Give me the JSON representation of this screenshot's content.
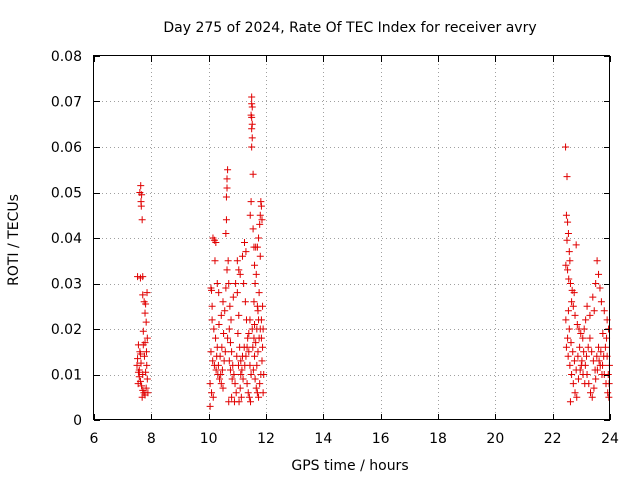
{
  "chart_data": {
    "type": "scatter",
    "title": "Day 275 of 2024, Rate Of TEC Index for receiver avry",
    "xlabel": "GPS time / hours",
    "ylabel": "ROTI / TECUs",
    "xlim": [
      6,
      24
    ],
    "ylim": [
      0,
      0.08
    ],
    "xticks": [
      6,
      8,
      10,
      12,
      14,
      16,
      18,
      20,
      22,
      24
    ],
    "xtick_labels": [
      "6",
      "8",
      "10",
      "12",
      "14",
      "16",
      "18",
      "20",
      "22",
      "24"
    ],
    "yticks": [
      0,
      0.01,
      0.02,
      0.03,
      0.04,
      0.05,
      0.06,
      0.07,
      0.08
    ],
    "ytick_labels": [
      "0",
      "0.01",
      "0.02",
      "0.03",
      "0.04",
      "0.05",
      "0.06",
      "0.07",
      "0.08"
    ],
    "grid": true,
    "marker": "plus",
    "color": "#e00000",
    "series": [
      {
        "name": "ROTI",
        "points": [
          [
            7.52,
            0.0315
          ],
          [
            7.62,
            0.0312
          ],
          [
            7.7,
            0.0315
          ],
          [
            7.6,
            0.05
          ],
          [
            7.63,
            0.0515
          ],
          [
            7.66,
            0.0495
          ],
          [
            7.64,
            0.048
          ],
          [
            7.65,
            0.047
          ],
          [
            7.68,
            0.044
          ],
          [
            7.7,
            0.0275
          ],
          [
            7.75,
            0.026
          ],
          [
            7.8,
            0.0255
          ],
          [
            7.85,
            0.028
          ],
          [
            7.78,
            0.0235
          ],
          [
            7.82,
            0.0215
          ],
          [
            7.55,
            0.0165
          ],
          [
            7.6,
            0.015
          ],
          [
            7.72,
            0.0165
          ],
          [
            7.86,
            0.018
          ],
          [
            7.5,
            0.012
          ],
          [
            7.55,
            0.0105
          ],
          [
            7.58,
            0.0095
          ],
          [
            7.62,
            0.0085
          ],
          [
            7.66,
            0.0075
          ],
          [
            7.7,
            0.0065
          ],
          [
            7.74,
            0.006
          ],
          [
            7.78,
            0.0055
          ],
          [
            7.82,
            0.007
          ],
          [
            7.86,
            0.009
          ],
          [
            7.52,
            0.0135
          ],
          [
            7.64,
            0.0125
          ],
          [
            7.76,
            0.014
          ],
          [
            7.84,
            0.012
          ],
          [
            7.58,
            0.011
          ],
          [
            7.7,
            0.01
          ],
          [
            7.8,
            0.0105
          ],
          [
            7.68,
            0.005
          ],
          [
            7.88,
            0.006
          ],
          [
            7.54,
            0.008
          ],
          [
            7.62,
            0.0145
          ],
          [
            7.72,
            0.0195
          ],
          [
            7.78,
            0.017
          ],
          [
            7.83,
            0.015
          ],
          [
            10.05,
            0.003
          ],
          [
            10.05,
            0.008
          ],
          [
            10.08,
            0.029
          ],
          [
            10.1,
            0.0285
          ],
          [
            10.12,
            0.025
          ],
          [
            10.15,
            0.04
          ],
          [
            10.2,
            0.0395
          ],
          [
            10.25,
            0.039
          ],
          [
            10.22,
            0.035
          ],
          [
            10.3,
            0.03
          ],
          [
            10.35,
            0.028
          ],
          [
            10.12,
            0.022
          ],
          [
            10.18,
            0.02
          ],
          [
            10.24,
            0.018
          ],
          [
            10.3,
            0.016
          ],
          [
            10.08,
            0.015
          ],
          [
            10.14,
            0.013
          ],
          [
            10.2,
            0.012
          ],
          [
            10.26,
            0.011
          ],
          [
            10.32,
            0.01
          ],
          [
            10.38,
            0.009
          ],
          [
            10.44,
            0.008
          ],
          [
            10.5,
            0.007
          ],
          [
            10.1,
            0.006
          ],
          [
            10.16,
            0.005
          ],
          [
            10.4,
            0.014
          ],
          [
            10.46,
            0.016
          ],
          [
            10.52,
            0.019
          ],
          [
            10.56,
            0.024
          ],
          [
            10.6,
            0.029
          ],
          [
            10.64,
            0.033
          ],
          [
            10.68,
            0.035
          ],
          [
            10.6,
            0.041
          ],
          [
            10.62,
            0.044
          ],
          [
            10.62,
            0.049
          ],
          [
            10.64,
            0.051
          ],
          [
            10.64,
            0.053
          ],
          [
            10.66,
            0.055
          ],
          [
            10.7,
            0.03
          ],
          [
            10.74,
            0.025
          ],
          [
            10.78,
            0.022
          ],
          [
            10.72,
            0.02
          ],
          [
            10.76,
            0.017
          ],
          [
            10.8,
            0.015
          ],
          [
            10.84,
            0.012
          ],
          [
            10.88,
            0.01
          ],
          [
            10.92,
            0.008
          ],
          [
            10.96,
            0.006
          ],
          [
            10.8,
            0.005
          ],
          [
            10.7,
            0.004
          ],
          [
            10.9,
            0.004
          ],
          [
            10.86,
            0.027
          ],
          [
            10.94,
            0.03
          ],
          [
            11.0,
            0.028
          ],
          [
            11.05,
            0.023
          ],
          [
            11.02,
            0.019
          ],
          [
            11.08,
            0.016
          ],
          [
            11.12,
            0.013
          ],
          [
            11.16,
            0.011
          ],
          [
            11.2,
            0.009
          ],
          [
            11.1,
            0.007
          ],
          [
            11.14,
            0.005
          ],
          [
            11.06,
            0.004
          ],
          [
            11.0,
            0.035
          ],
          [
            11.05,
            0.033
          ],
          [
            11.1,
            0.032
          ],
          [
            11.18,
            0.036
          ],
          [
            11.25,
            0.039
          ],
          [
            11.3,
            0.037
          ],
          [
            11.22,
            0.03
          ],
          [
            11.28,
            0.026
          ],
          [
            11.32,
            0.022
          ],
          [
            11.36,
            0.018
          ],
          [
            11.4,
            0.015
          ],
          [
            11.44,
            0.012
          ],
          [
            11.48,
            0.01
          ],
          [
            11.34,
            0.008
          ],
          [
            11.38,
            0.006
          ],
          [
            11.42,
            0.005
          ],
          [
            11.46,
            0.004
          ],
          [
            11.45,
            0.045
          ],
          [
            11.48,
            0.048
          ],
          [
            11.5,
            0.071
          ],
          [
            11.5,
            0.0695
          ],
          [
            11.52,
            0.0688
          ],
          [
            11.48,
            0.067
          ],
          [
            11.5,
            0.0665
          ],
          [
            11.52,
            0.065
          ],
          [
            11.5,
            0.064
          ],
          [
            11.52,
            0.062
          ],
          [
            11.5,
            0.06
          ],
          [
            11.55,
            0.054
          ],
          [
            11.55,
            0.042
          ],
          [
            11.58,
            0.038
          ],
          [
            11.6,
            0.034
          ],
          [
            11.62,
            0.03
          ],
          [
            11.66,
            0.032
          ],
          [
            11.7,
            0.038
          ],
          [
            11.74,
            0.04
          ],
          [
            11.78,
            0.043
          ],
          [
            11.8,
            0.045
          ],
          [
            11.82,
            0.048
          ],
          [
            11.84,
            0.047
          ],
          [
            11.86,
            0.044
          ],
          [
            11.8,
            0.036
          ],
          [
            11.76,
            0.028
          ],
          [
            11.72,
            0.024
          ],
          [
            11.68,
            0.02
          ],
          [
            11.64,
            0.017
          ],
          [
            11.6,
            0.014
          ],
          [
            11.56,
            0.011
          ],
          [
            11.62,
            0.009
          ],
          [
            11.66,
            0.007
          ],
          [
            11.7,
            0.006
          ],
          [
            11.74,
            0.005
          ],
          [
            11.78,
            0.008
          ],
          [
            11.82,
            0.01
          ],
          [
            11.86,
            0.013
          ],
          [
            11.88,
            0.016
          ],
          [
            11.9,
            0.02
          ],
          [
            11.88,
            0.025
          ],
          [
            11.84,
            0.022
          ],
          [
            11.76,
            0.018
          ],
          [
            11.72,
            0.015
          ],
          [
            11.68,
            0.012
          ],
          [
            11.9,
            0.006
          ],
          [
            11.92,
            0.01
          ],
          [
            11.64,
            0.038
          ],
          [
            11.58,
            0.026
          ],
          [
            10.44,
            0.023
          ],
          [
            10.5,
            0.026
          ],
          [
            10.36,
            0.021
          ],
          [
            10.28,
            0.014
          ],
          [
            10.34,
            0.012
          ],
          [
            10.42,
            0.01
          ],
          [
            10.48,
            0.011
          ],
          [
            10.54,
            0.013
          ],
          [
            10.58,
            0.015
          ],
          [
            10.66,
            0.018
          ],
          [
            10.72,
            0.013
          ],
          [
            10.76,
            0.011
          ],
          [
            10.82,
            0.009
          ],
          [
            10.98,
            0.014
          ],
          [
            11.04,
            0.012
          ],
          [
            11.12,
            0.01
          ],
          [
            11.18,
            0.014
          ],
          [
            11.24,
            0.016
          ],
          [
            11.26,
            0.012
          ],
          [
            11.3,
            0.014
          ],
          [
            11.34,
            0.016
          ],
          [
            11.4,
            0.019
          ],
          [
            11.44,
            0.022
          ],
          [
            11.52,
            0.02
          ],
          [
            11.54,
            0.016
          ],
          [
            11.58,
            0.018
          ],
          [
            11.6,
            0.021
          ],
          [
            11.7,
            0.025
          ],
          [
            11.74,
            0.022
          ],
          [
            11.8,
            0.02
          ],
          [
            11.84,
            0.018
          ],
          [
            22.45,
            0.06
          ],
          [
            22.5,
            0.0535
          ],
          [
            22.48,
            0.045
          ],
          [
            22.52,
            0.0435
          ],
          [
            22.55,
            0.041
          ],
          [
            22.5,
            0.0395
          ],
          [
            22.58,
            0.037
          ],
          [
            22.6,
            0.035
          ],
          [
            22.46,
            0.034
          ],
          [
            22.52,
            0.033
          ],
          [
            22.56,
            0.031
          ],
          [
            22.62,
            0.03
          ],
          [
            22.68,
            0.0285
          ],
          [
            22.75,
            0.028
          ],
          [
            22.82,
            0.0385
          ],
          [
            22.72,
            0.025
          ],
          [
            22.78,
            0.023
          ],
          [
            22.86,
            0.021
          ],
          [
            22.92,
            0.02
          ],
          [
            22.98,
            0.019
          ],
          [
            23.05,
            0.018
          ],
          [
            23.1,
            0.02
          ],
          [
            23.15,
            0.022
          ],
          [
            23.2,
            0.025
          ],
          [
            23.3,
            0.023
          ],
          [
            23.4,
            0.027
          ],
          [
            23.5,
            0.03
          ],
          [
            23.6,
            0.032
          ],
          [
            23.55,
            0.035
          ],
          [
            23.65,
            0.029
          ],
          [
            23.7,
            0.026
          ],
          [
            23.8,
            0.024
          ],
          [
            23.9,
            0.022
          ],
          [
            23.95,
            0.02
          ],
          [
            23.88,
            0.018
          ],
          [
            22.48,
            0.016
          ],
          [
            22.54,
            0.014
          ],
          [
            22.6,
            0.012
          ],
          [
            22.66,
            0.01
          ],
          [
            22.72,
            0.008
          ],
          [
            22.78,
            0.006
          ],
          [
            22.84,
            0.005
          ],
          [
            22.62,
            0.004
          ],
          [
            22.9,
            0.009
          ],
          [
            22.96,
            0.011
          ],
          [
            23.02,
            0.013
          ],
          [
            23.08,
            0.015
          ],
          [
            23.14,
            0.012
          ],
          [
            23.2,
            0.01
          ],
          [
            23.26,
            0.008
          ],
          [
            23.32,
            0.006
          ],
          [
            23.38,
            0.005
          ],
          [
            23.44,
            0.007
          ],
          [
            23.5,
            0.009
          ],
          [
            23.56,
            0.011
          ],
          [
            23.62,
            0.013
          ],
          [
            23.68,
            0.015
          ],
          [
            23.74,
            0.012
          ],
          [
            23.8,
            0.01
          ],
          [
            23.86,
            0.008
          ],
          [
            23.92,
            0.006
          ],
          [
            23.96,
            0.005
          ],
          [
            23.98,
            0.012
          ],
          [
            22.52,
            0.018
          ],
          [
            22.58,
            0.02
          ],
          [
            22.64,
            0.017
          ],
          [
            22.7,
            0.015
          ],
          [
            22.76,
            0.013
          ],
          [
            22.82,
            0.011
          ],
          [
            22.88,
            0.014
          ],
          [
            22.94,
            0.016
          ],
          [
            23.0,
            0.012
          ],
          [
            23.06,
            0.01
          ],
          [
            23.12,
            0.008
          ],
          [
            23.18,
            0.014
          ],
          [
            23.24,
            0.016
          ],
          [
            23.3,
            0.018
          ],
          [
            23.36,
            0.015
          ],
          [
            23.42,
            0.013
          ],
          [
            23.48,
            0.011
          ],
          [
            23.54,
            0.014
          ],
          [
            23.6,
            0.016
          ],
          [
            23.66,
            0.012
          ],
          [
            23.72,
            0.01
          ],
          [
            23.78,
            0.014
          ],
          [
            23.84,
            0.016
          ],
          [
            23.9,
            0.014
          ],
          [
            23.94,
            0.01
          ],
          [
            23.97,
            0.008
          ],
          [
            22.46,
            0.022
          ],
          [
            22.55,
            0.024
          ],
          [
            22.66,
            0.026
          ],
          [
            23.45,
            0.024
          ],
          [
            23.75,
            0.019
          ]
        ]
      }
    ]
  }
}
